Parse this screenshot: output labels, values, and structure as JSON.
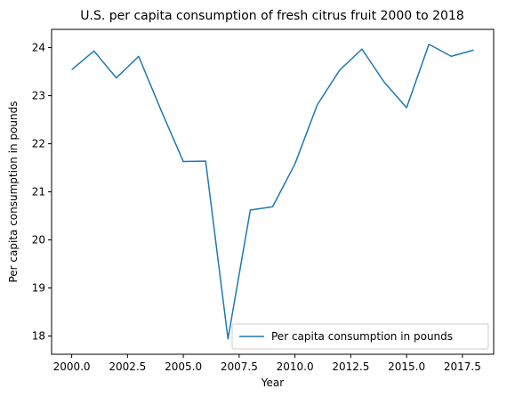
{
  "chart_data": {
    "type": "line",
    "title": "U.S. per capita consumption of fresh citrus fruit 2000 to 2018",
    "xlabel": "Year",
    "ylabel": "Per capita consumption in pounds",
    "xlim": [
      1999.1,
      2018.9
    ],
    "ylim": [
      17.62,
      24.38
    ],
    "x_ticks": [
      2000.0,
      2002.5,
      2005.0,
      2007.5,
      2010.0,
      2012.5,
      2015.0,
      2017.5
    ],
    "x_tick_labels": [
      "2000.0",
      "2002.5",
      "2005.0",
      "2007.5",
      "2010.0",
      "2012.5",
      "2015.0",
      "2017.5"
    ],
    "y_ticks": [
      18,
      19,
      20,
      21,
      22,
      23,
      24
    ],
    "y_tick_labels": [
      "18",
      "19",
      "20",
      "21",
      "22",
      "23",
      "24"
    ],
    "grid": false,
    "legend_position": "bottom-right",
    "color": "#1f77b4",
    "series": [
      {
        "name": "Per capita consumption in pounds",
        "x": [
          2000,
          2001,
          2002,
          2003,
          2004,
          2005,
          2006,
          2007,
          2008,
          2009,
          2010,
          2011,
          2012,
          2013,
          2014,
          2015,
          2016,
          2017,
          2018
        ],
        "y": [
          23.54,
          23.93,
          23.37,
          23.82,
          22.7,
          21.63,
          21.64,
          17.94,
          20.62,
          20.69,
          21.58,
          22.81,
          23.53,
          23.97,
          23.28,
          22.75,
          24.07,
          23.82,
          23.95
        ]
      }
    ]
  }
}
